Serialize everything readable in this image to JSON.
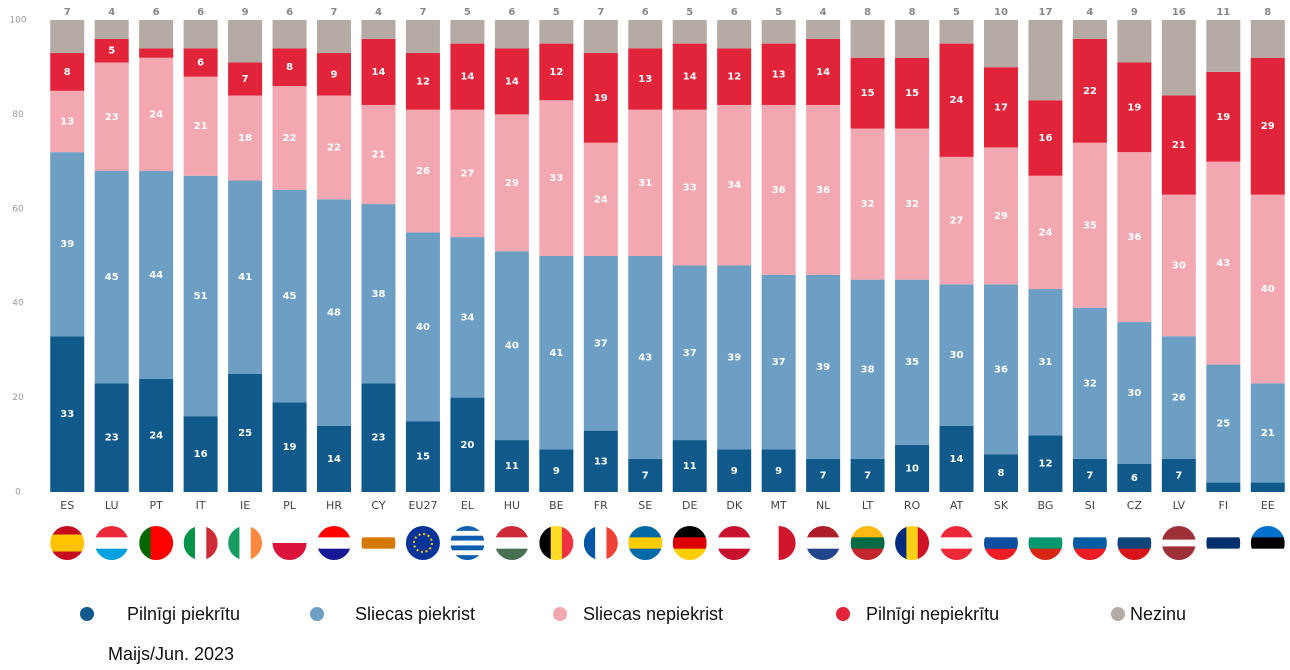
{
  "chart_data": {
    "type": "stacked_bar",
    "note": "Maijs/Jun. 2023",
    "categories": [
      "ES",
      "LU",
      "PT",
      "IT",
      "IE",
      "PL",
      "HR",
      "CY",
      "EU27",
      "EL",
      "HU",
      "BE",
      "FR",
      "SE",
      "DE",
      "DK",
      "MT",
      "NL",
      "LT",
      "RO",
      "AT",
      "SK",
      "BG",
      "SI",
      "CZ",
      "LV",
      "FI",
      "EE"
    ],
    "series": [
      {
        "name": "Pilnīgi piekrītu",
        "color": "#0f5a8a",
        "values": [
          33,
          23,
          24,
          16,
          25,
          19,
          14,
          23,
          15,
          20,
          11,
          9,
          13,
          7,
          11,
          9,
          9,
          7,
          7,
          10,
          14,
          8,
          12,
          7,
          6,
          7,
          2,
          2
        ]
      },
      {
        "name": "Sliecas piekrist",
        "color": "#6c9fc3",
        "values": [
          39,
          45,
          44,
          51,
          41,
          45,
          48,
          38,
          40,
          34,
          40,
          41,
          37,
          43,
          37,
          39,
          37,
          39,
          38,
          35,
          30,
          36,
          31,
          32,
          30,
          26,
          25,
          21
        ]
      },
      {
        "name": "Sliecas nepiekrist",
        "color": "#f3a8b1",
        "values": [
          13,
          23,
          24,
          21,
          18,
          22,
          22,
          21,
          26,
          27,
          29,
          33,
          24,
          31,
          33,
          34,
          36,
          36,
          32,
          32,
          27,
          29,
          24,
          35,
          36,
          30,
          43,
          40
        ]
      },
      {
        "name": "Pilnīgi nepiekrītu",
        "color": "#e2243a",
        "values": [
          8,
          5,
          2,
          6,
          7,
          8,
          9,
          14,
          12,
          14,
          14,
          12,
          19,
          13,
          14,
          12,
          13,
          14,
          15,
          15,
          24,
          17,
          16,
          22,
          19,
          21,
          19,
          29
        ]
      },
      {
        "name": "Nezinu",
        "color": "#b6aaa4",
        "values": [
          7,
          4,
          6,
          6,
          9,
          6,
          7,
          4,
          7,
          5,
          6,
          5,
          7,
          6,
          5,
          6,
          5,
          4,
          8,
          8,
          5,
          10,
          17,
          4,
          9,
          16,
          11,
          8
        ]
      }
    ],
    "ylim": [
      0,
      100
    ],
    "yticks": [
      0,
      20,
      40,
      60,
      80,
      100
    ],
    "grid": false,
    "legend": "bottom"
  }
}
